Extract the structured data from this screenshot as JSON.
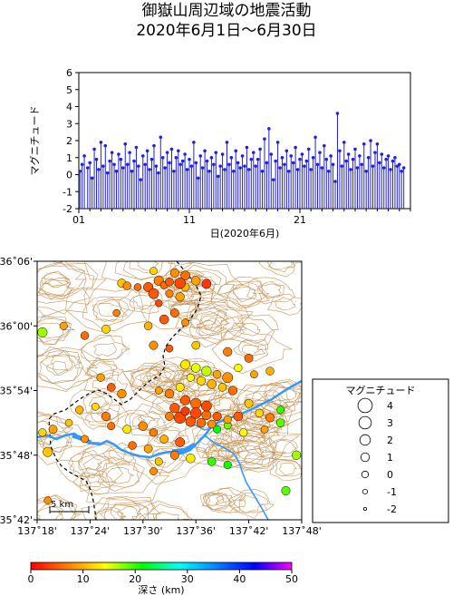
{
  "title_line1": "御嶽山周辺域の地震活動",
  "title_line2": "2020年6月1日～6月30日",
  "chart_data": [
    {
      "type": "scatter",
      "subtype": "stem",
      "ylabel": "マグニチュード",
      "xlabel": "日(2020年6月)",
      "xlim": [
        1,
        31
      ],
      "ylim": [
        -2,
        6
      ],
      "x_ticks": [
        "01",
        "11",
        "21"
      ],
      "x_tick_values": [
        1,
        11,
        21
      ],
      "y_ticks": [
        -2,
        -1,
        0,
        1,
        2,
        3,
        4,
        5,
        6
      ],
      "series_color": "#1f1fe6",
      "points": [
        [
          1.1,
          0.2
        ],
        [
          1.3,
          0.6
        ],
        [
          1.5,
          1.1
        ],
        [
          1.8,
          0.4
        ],
        [
          2.0,
          0.7
        ],
        [
          2.2,
          -0.2
        ],
        [
          2.4,
          1.5
        ],
        [
          2.6,
          0.9
        ],
        [
          2.8,
          0.3
        ],
        [
          3.0,
          1.9
        ],
        [
          3.2,
          0.5
        ],
        [
          3.4,
          1.7
        ],
        [
          3.6,
          0.1
        ],
        [
          3.8,
          0.8
        ],
        [
          4.0,
          1.3
        ],
        [
          4.2,
          0.6
        ],
        [
          4.4,
          0.2
        ],
        [
          4.6,
          1.2
        ],
        [
          4.8,
          0.9
        ],
        [
          5.0,
          0.4
        ],
        [
          5.2,
          1.8
        ],
        [
          5.4,
          0.6
        ],
        [
          5.6,
          1.3
        ],
        [
          5.8,
          0.2
        ],
        [
          6.0,
          0.8
        ],
        [
          6.2,
          1.6
        ],
        [
          6.4,
          0.5
        ],
        [
          6.6,
          -0.3
        ],
        [
          6.8,
          1.1
        ],
        [
          7.0,
          0.6
        ],
        [
          7.2,
          1.4
        ],
        [
          7.4,
          0.3
        ],
        [
          7.6,
          0.9
        ],
        [
          7.8,
          1.7
        ],
        [
          8.0,
          0.5
        ],
        [
          8.2,
          0.1
        ],
        [
          8.4,
          2.2
        ],
        [
          8.6,
          1.0
        ],
        [
          8.8,
          0.4
        ],
        [
          9.0,
          1.3
        ],
        [
          9.2,
          0.7
        ],
        [
          9.4,
          1.5
        ],
        [
          9.6,
          0.2
        ],
        [
          9.8,
          1.0
        ],
        [
          10.0,
          1.4
        ],
        [
          10.2,
          0.6
        ],
        [
          10.4,
          0.8
        ],
        [
          10.6,
          1.2
        ],
        [
          10.8,
          0.3
        ],
        [
          11.0,
          0.9
        ],
        [
          11.2,
          0.5
        ],
        [
          11.4,
          1.9
        ],
        [
          11.6,
          0.7
        ],
        [
          11.8,
          -0.2
        ],
        [
          12.0,
          1.1
        ],
        [
          12.2,
          0.4
        ],
        [
          12.4,
          1.4
        ],
        [
          12.6,
          0.8
        ],
        [
          12.8,
          0.2
        ],
        [
          13.0,
          1.0
        ],
        [
          13.2,
          0.6
        ],
        [
          13.4,
          1.3
        ],
        [
          13.6,
          -0.1
        ],
        [
          13.8,
          0.5
        ],
        [
          14.0,
          1.2
        ],
        [
          14.2,
          0.3
        ],
        [
          14.4,
          1.9
        ],
        [
          14.6,
          0.6
        ],
        [
          14.8,
          1.0
        ],
        [
          15.0,
          0.2
        ],
        [
          15.2,
          1.4
        ],
        [
          15.4,
          0.7
        ],
        [
          15.6,
          0.4
        ],
        [
          15.8,
          1.1
        ],
        [
          16.0,
          0.5
        ],
        [
          16.2,
          1.6
        ],
        [
          16.4,
          0.3
        ],
        [
          16.6,
          0.9
        ],
        [
          16.8,
          1.3
        ],
        [
          17.0,
          0.5
        ],
        [
          17.2,
          0.9
        ],
        [
          17.4,
          1.5
        ],
        [
          17.6,
          0.2
        ],
        [
          17.8,
          2.1
        ],
        [
          18.0,
          0.7
        ],
        [
          18.2,
          2.7
        ],
        [
          18.4,
          1.2
        ],
        [
          18.6,
          -0.3
        ],
        [
          18.8,
          0.8
        ],
        [
          19.0,
          1.9
        ],
        [
          19.2,
          0.4
        ],
        [
          19.4,
          1.0
        ],
        [
          19.6,
          0.6
        ],
        [
          19.8,
          1.4
        ],
        [
          20.0,
          0.2
        ],
        [
          20.2,
          1.1
        ],
        [
          20.4,
          0.7
        ],
        [
          20.6,
          1.6
        ],
        [
          20.8,
          0.3
        ],
        [
          21.0,
          0.9
        ],
        [
          21.2,
          1.2
        ],
        [
          21.4,
          0.5
        ],
        [
          21.6,
          0.8
        ],
        [
          21.8,
          1.5
        ],
        [
          22.0,
          0.3
        ],
        [
          22.2,
          1.0
        ],
        [
          22.4,
          2.2
        ],
        [
          22.6,
          0.6
        ],
        [
          22.8,
          1.3
        ],
        [
          23.0,
          0.4
        ],
        [
          23.2,
          1.7
        ],
        [
          23.4,
          0.9
        ],
        [
          23.6,
          0.2
        ],
        [
          23.8,
          1.1
        ],
        [
          24.0,
          0.6
        ],
        [
          24.2,
          -0.4
        ],
        [
          24.4,
          3.6
        ],
        [
          24.6,
          1.4
        ],
        [
          24.8,
          0.5
        ],
        [
          25.0,
          1.9
        ],
        [
          25.2,
          0.8
        ],
        [
          25.4,
          1.2
        ],
        [
          25.6,
          0.3
        ],
        [
          25.8,
          0.9
        ],
        [
          26.0,
          1.5
        ],
        [
          26.2,
          0.4
        ],
        [
          26.4,
          1.1
        ],
        [
          26.6,
          0.6
        ],
        [
          26.8,
          1.8
        ],
        [
          27.0,
          0.2
        ],
        [
          27.2,
          1.0
        ],
        [
          27.4,
          2.0
        ],
        [
          27.6,
          0.5
        ],
        [
          27.8,
          1.3
        ],
        [
          28.0,
          1.8
        ],
        [
          28.2,
          0.7
        ],
        [
          28.4,
          1.2
        ],
        [
          28.6,
          0.4
        ],
        [
          28.8,
          0.9
        ],
        [
          29.0,
          1.1
        ],
        [
          29.2,
          0.3
        ],
        [
          29.4,
          0.8
        ],
        [
          29.6,
          1.0
        ],
        [
          29.8,
          0.5
        ],
        [
          30.0,
          0.6
        ],
        [
          30.2,
          0.2
        ],
        [
          30.4,
          0.4
        ]
      ]
    },
    {
      "type": "scatter",
      "subtype": "epicenter-map",
      "x_ticks": [
        "137˚18'",
        "137˚24'",
        "137˚30'",
        "137˚36'",
        "137˚42'",
        "137˚48'"
      ],
      "x_tick_values": [
        137.3,
        137.4,
        137.5,
        137.6,
        137.7,
        137.8
      ],
      "y_ticks": [
        "35˚42'",
        "35˚48'",
        "35˚54'",
        "36˚00'",
        "36˚06'"
      ],
      "y_tick_values": [
        35.7,
        35.8,
        35.9,
        36.0,
        36.1
      ],
      "xlim": [
        137.3,
        137.8
      ],
      "ylim": [
        35.7,
        36.1
      ],
      "scale_bar_label": "5 km",
      "events": [
        [
          137.52,
          36.085,
          0.4,
          12
        ],
        [
          137.56,
          36.082,
          1.0,
          8
        ],
        [
          137.58,
          36.078,
          1.3,
          6
        ],
        [
          137.53,
          36.07,
          1.6,
          7
        ],
        [
          137.55,
          36.068,
          0.8,
          5
        ],
        [
          137.57,
          36.066,
          2.1,
          4
        ],
        [
          137.6,
          36.07,
          1.2,
          9
        ],
        [
          137.54,
          36.063,
          0.5,
          6
        ],
        [
          137.51,
          36.06,
          1.5,
          5
        ],
        [
          137.58,
          36.06,
          0.9,
          10
        ],
        [
          137.62,
          36.065,
          1.4,
          3
        ],
        [
          137.47,
          36.062,
          0.7,
          8
        ],
        [
          137.46,
          36.066,
          1.0,
          11
        ],
        [
          137.49,
          36.06,
          0.3,
          6
        ],
        [
          137.52,
          36.05,
          1.8,
          5
        ],
        [
          137.55,
          36.05,
          0.6,
          7
        ],
        [
          137.57,
          36.045,
          1.1,
          9
        ],
        [
          137.53,
          36.035,
          0.2,
          4
        ],
        [
          137.56,
          36.02,
          0.9,
          6
        ],
        [
          137.54,
          36.01,
          1.3,
          5
        ],
        [
          137.58,
          36.005,
          0.4,
          8
        ],
        [
          137.51,
          36.0,
          0.7,
          10
        ],
        [
          137.45,
          36.02,
          0.2,
          7
        ],
        [
          137.43,
          35.995,
          0.9,
          12
        ],
        [
          137.31,
          35.99,
          1.5,
          17
        ],
        [
          137.35,
          36.0,
          0.5,
          9
        ],
        [
          137.39,
          35.985,
          0.7,
          6
        ],
        [
          137.52,
          35.97,
          1.0,
          8
        ],
        [
          137.55,
          35.965,
          0.3,
          5
        ],
        [
          137.6,
          35.97,
          0.8,
          11
        ],
        [
          137.66,
          35.96,
          1.1,
          7
        ],
        [
          137.7,
          35.95,
          0.9,
          6
        ],
        [
          137.68,
          35.935,
          0.6,
          14
        ],
        [
          137.71,
          35.925,
          0.4,
          9
        ],
        [
          137.74,
          35.93,
          0.7,
          10
        ],
        [
          137.58,
          35.94,
          1.4,
          13
        ],
        [
          137.6,
          35.935,
          1.2,
          15
        ],
        [
          137.62,
          35.93,
          1.6,
          16
        ],
        [
          137.64,
          35.925,
          0.8,
          9
        ],
        [
          137.66,
          35.92,
          1.9,
          8
        ],
        [
          137.59,
          35.92,
          0.5,
          14
        ],
        [
          137.61,
          35.915,
          1.0,
          12
        ],
        [
          137.63,
          35.91,
          1.3,
          10
        ],
        [
          137.65,
          35.905,
          0.7,
          11
        ],
        [
          137.67,
          35.9,
          1.1,
          6
        ],
        [
          137.57,
          35.905,
          0.9,
          13
        ],
        [
          137.55,
          35.895,
          1.2,
          7
        ],
        [
          137.53,
          35.9,
          0.4,
          9
        ],
        [
          137.58,
          35.885,
          1.5,
          5
        ],
        [
          137.6,
          35.88,
          2.0,
          6
        ],
        [
          137.62,
          35.876,
          1.8,
          4
        ],
        [
          137.56,
          35.873,
          1.6,
          5
        ],
        [
          137.58,
          35.868,
          1.1,
          3
        ],
        [
          137.6,
          35.865,
          2.2,
          4
        ],
        [
          137.62,
          35.862,
          1.4,
          6
        ],
        [
          137.64,
          35.86,
          1.0,
          5
        ],
        [
          137.55,
          35.86,
          0.9,
          7
        ],
        [
          137.57,
          35.858,
          2.5,
          4
        ],
        [
          137.59,
          35.852,
          1.7,
          5
        ],
        [
          137.61,
          35.85,
          1.2,
          6
        ],
        [
          137.63,
          35.848,
          0.8,
          8
        ],
        [
          137.66,
          35.855,
          0.6,
          9
        ],
        [
          137.68,
          35.86,
          1.3,
          5
        ],
        [
          137.7,
          35.88,
          0.9,
          11
        ],
        [
          137.72,
          35.865,
          0.7,
          12
        ],
        [
          137.74,
          35.858,
          1.0,
          7
        ],
        [
          137.76,
          35.87,
          0.5,
          20
        ],
        [
          137.76,
          35.85,
          0.8,
          19
        ],
        [
          137.69,
          35.835,
          0.6,
          14
        ],
        [
          137.73,
          35.84,
          0.4,
          9
        ],
        [
          137.64,
          35.84,
          0.5,
          22
        ],
        [
          137.66,
          35.846,
          0.3,
          18
        ],
        [
          137.42,
          35.92,
          0.6,
          9
        ],
        [
          137.44,
          35.905,
          0.8,
          5
        ],
        [
          137.46,
          35.895,
          1.1,
          8
        ],
        [
          137.41,
          35.875,
          0.4,
          12
        ],
        [
          137.38,
          35.87,
          0.7,
          10
        ],
        [
          137.43,
          35.86,
          1.0,
          7
        ],
        [
          137.36,
          35.85,
          0.3,
          11
        ],
        [
          137.44,
          35.845,
          0.5,
          6
        ],
        [
          137.47,
          35.84,
          0.9,
          13
        ],
        [
          137.5,
          35.845,
          1.2,
          8
        ],
        [
          137.52,
          35.835,
          0.6,
          7
        ],
        [
          137.54,
          35.825,
          0.8,
          10
        ],
        [
          137.57,
          35.82,
          1.4,
          5
        ],
        [
          137.31,
          35.835,
          0.6,
          12
        ],
        [
          137.33,
          35.84,
          0.9,
          9
        ],
        [
          137.32,
          35.805,
          1.5,
          11
        ],
        [
          137.39,
          35.825,
          0.4,
          8
        ],
        [
          137.48,
          35.815,
          0.7,
          6
        ],
        [
          137.51,
          35.81,
          0.9,
          9
        ],
        [
          137.53,
          35.79,
          0.5,
          11
        ],
        [
          137.56,
          35.8,
          1.0,
          7
        ],
        [
          137.59,
          35.795,
          1.2,
          13
        ],
        [
          137.63,
          35.79,
          0.8,
          20
        ],
        [
          137.66,
          35.785,
          0.6,
          21
        ],
        [
          137.52,
          35.775,
          0.4,
          8
        ],
        [
          137.79,
          35.8,
          1.1,
          17
        ],
        [
          137.77,
          35.745,
          1.0,
          19
        ],
        [
          137.32,
          35.73,
          0.3,
          8
        ]
      ]
    }
  ],
  "legend": {
    "title": "マグニチュード",
    "labels": [
      "4",
      "3",
      "2",
      "1",
      "0",
      "-1",
      "-2"
    ],
    "magnitudes": [
      4,
      3,
      2,
      1,
      0,
      -1,
      -2
    ]
  },
  "colorbar": {
    "label": "深さ (km)",
    "ticks": [
      "0",
      "10",
      "20",
      "30",
      "40",
      "50"
    ],
    "tick_values": [
      0,
      10,
      20,
      30,
      40,
      50
    ],
    "stops": [
      "#ff0000",
      "#ff8000",
      "#ffff00",
      "#00ff00",
      "#00ffff",
      "#0080ff",
      "#0000ff",
      "#ff00ff"
    ]
  },
  "colors": {
    "stem": "#1f1fe6",
    "contour": "#c8965a",
    "river": "#3399ff",
    "boundary": "#000000"
  }
}
